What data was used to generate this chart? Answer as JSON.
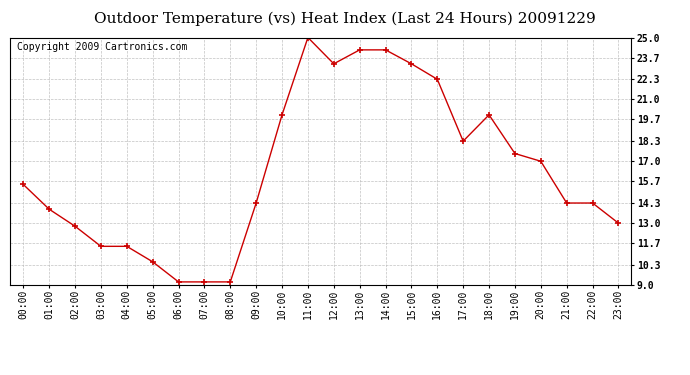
{
  "title": "Outdoor Temperature (vs) Heat Index (Last 24 Hours) 20091229",
  "copyright": "Copyright 2009 Cartronics.com",
  "x_labels": [
    "00:00",
    "01:00",
    "02:00",
    "03:00",
    "04:00",
    "05:00",
    "06:00",
    "07:00",
    "08:00",
    "09:00",
    "10:00",
    "11:00",
    "12:00",
    "13:00",
    "14:00",
    "15:00",
    "16:00",
    "17:00",
    "18:00",
    "19:00",
    "20:00",
    "21:00",
    "22:00",
    "23:00"
  ],
  "y_values": [
    15.5,
    13.9,
    12.8,
    11.5,
    11.5,
    10.5,
    9.2,
    9.2,
    9.2,
    14.3,
    20.0,
    25.0,
    23.3,
    24.2,
    24.2,
    23.3,
    22.3,
    18.3,
    20.0,
    17.5,
    17.0,
    14.3,
    14.3,
    13.0
  ],
  "ylim_min": 9.0,
  "ylim_max": 25.0,
  "yticks": [
    9.0,
    10.3,
    11.7,
    13.0,
    14.3,
    15.7,
    17.0,
    18.3,
    19.7,
    21.0,
    22.3,
    23.7,
    25.0
  ],
  "line_color": "#cc0000",
  "marker": "+",
  "marker_size": 5,
  "marker_color": "#cc0000",
  "bg_color": "#ffffff",
  "grid_color": "#bbbbbb",
  "title_fontsize": 11,
  "copyright_fontsize": 7,
  "tick_fontsize": 7,
  "ytick_fontsize": 7
}
